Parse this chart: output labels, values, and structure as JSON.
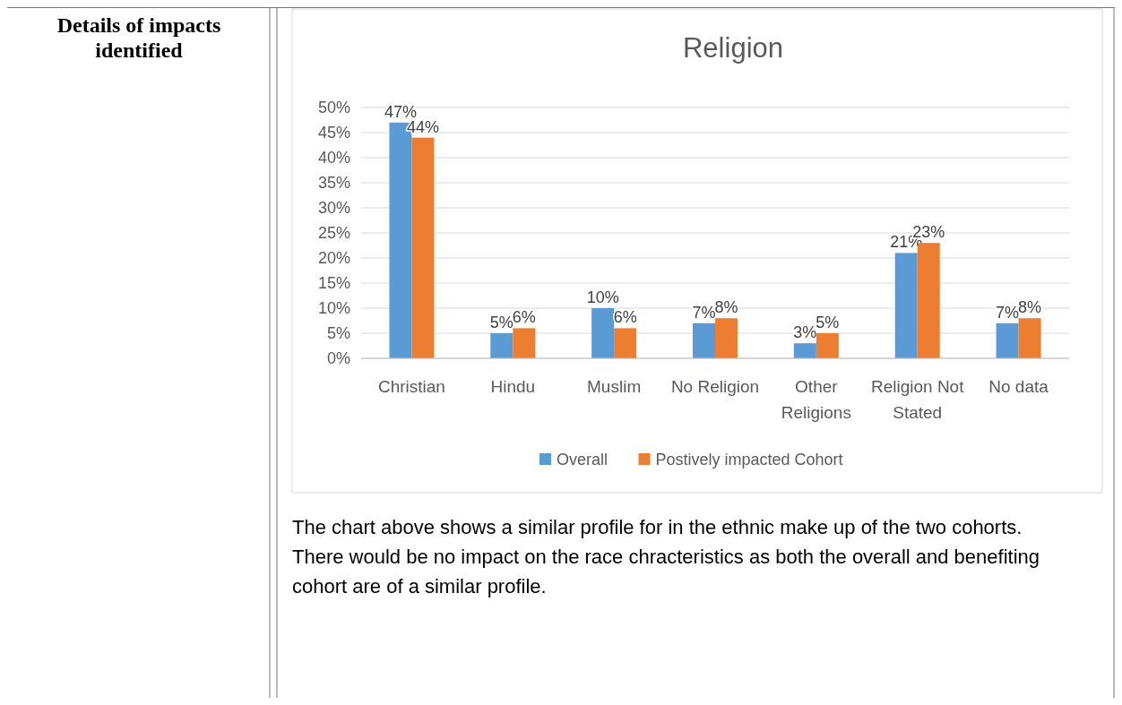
{
  "chart_data": {
    "type": "bar",
    "title": "Religion",
    "categories": [
      "Christian",
      "Hindu",
      "Muslim",
      "No Religion",
      "Other Religions",
      "Religion Not Stated",
      "No data"
    ],
    "series": [
      {
        "name": "Overall",
        "color": "#5b9bd5",
        "values": [
          47,
          5,
          10,
          7,
          3,
          21,
          7
        ],
        "value_labels": [
          "47%",
          "5%",
          "10%",
          "7%",
          "3%",
          "21%",
          "7%"
        ]
      },
      {
        "name": "Postively impacted Cohort",
        "color": "#ed7d31",
        "values": [
          44,
          6,
          6,
          8,
          5,
          23,
          8
        ],
        "value_labels": [
          "44%",
          "6%",
          "6%",
          "8%",
          "5%",
          "23%",
          "8%"
        ]
      }
    ],
    "ylim": [
      0,
      50
    ],
    "yticks": [
      {
        "value": 0,
        "label": "0%"
      },
      {
        "value": 5,
        "label": "5%"
      },
      {
        "value": 10,
        "label": "10%"
      },
      {
        "value": 15,
        "label": "15%"
      },
      {
        "value": 20,
        "label": "20%"
      },
      {
        "value": 25,
        "label": "25%"
      },
      {
        "value": 30,
        "label": "30%"
      },
      {
        "value": 35,
        "label": "35%"
      },
      {
        "value": 40,
        "label": "40%"
      },
      {
        "value": 45,
        "label": "45%"
      },
      {
        "value": 50,
        "label": "50%"
      }
    ],
    "grid": "y",
    "legend": "bottom",
    "annotations": [
      "Details of impacts identified",
      "The chart above shows a similar profile for in the ethnic make up of the two cohorts.  There would be no impact on the race chracteristics as both the overall and benefiting cohort are of a similar profile."
    ]
  }
}
